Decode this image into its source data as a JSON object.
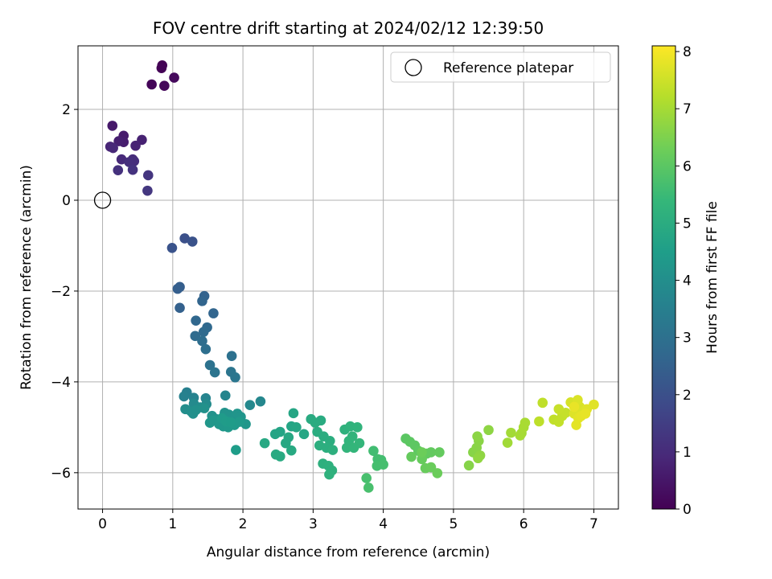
{
  "chart_data": {
    "type": "scatter",
    "title": "FOV centre drift starting at 2024/02/12 12:39:50",
    "xlabel": "Angular distance from reference (arcmin)",
    "ylabel": "Rotation from reference (arcmin)",
    "colorbar_label": "Hours from first FF file",
    "xlim": [
      -0.35,
      7.35
    ],
    "ylim": [
      -6.8,
      3.4
    ],
    "clim": [
      0,
      8.1
    ],
    "colormap": "viridis",
    "grid": true,
    "xticks": [
      0,
      1,
      2,
      3,
      4,
      5,
      6,
      7
    ],
    "xtick_labels": [
      "0",
      "1",
      "2",
      "3",
      "4",
      "5",
      "6",
      "7"
    ],
    "yticks": [
      -6,
      -4,
      -2,
      0,
      2
    ],
    "ytick_labels": [
      "−6",
      "−4",
      "−2",
      "0",
      "2"
    ],
    "cticks": [
      0,
      1,
      2,
      3,
      4,
      5,
      6,
      7,
      8
    ],
    "ctick_labels": [
      "0",
      "1",
      "2",
      "3",
      "4",
      "5",
      "6",
      "7",
      "8"
    ],
    "legend": {
      "label": "Reference platepar",
      "loc": "upper right"
    },
    "reference_point": {
      "x": 0,
      "y": 0
    },
    "points": [
      [
        0.85,
        2.97,
        0.0
      ],
      [
        0.84,
        2.91,
        0.05
      ],
      [
        0.7,
        2.55,
        0.1
      ],
      [
        0.88,
        2.52,
        0.15
      ],
      [
        1.02,
        2.7,
        0.2
      ],
      [
        0.14,
        1.64,
        0.55
      ],
      [
        0.3,
        1.42,
        0.6
      ],
      [
        0.3,
        1.28,
        0.65
      ],
      [
        0.23,
        1.3,
        0.7
      ],
      [
        0.56,
        1.33,
        0.75
      ],
      [
        0.47,
        1.2,
        0.8
      ],
      [
        0.11,
        1.18,
        0.85
      ],
      [
        0.15,
        1.15,
        0.9
      ],
      [
        0.27,
        0.9,
        0.95
      ],
      [
        0.43,
        0.9,
        1.0
      ],
      [
        0.45,
        0.86,
        1.05
      ],
      [
        0.38,
        0.84,
        1.1
      ],
      [
        0.22,
        0.66,
        1.15
      ],
      [
        0.43,
        0.67,
        1.2
      ],
      [
        0.65,
        0.55,
        1.25
      ],
      [
        0.64,
        0.21,
        1.3
      ],
      [
        1.17,
        -0.84,
        2.0
      ],
      [
        1.28,
        -0.91,
        2.05
      ],
      [
        0.99,
        -1.05,
        2.1
      ],
      [
        1.1,
        -1.91,
        2.4
      ],
      [
        1.07,
        -1.95,
        2.45
      ],
      [
        1.1,
        -2.37,
        2.5
      ],
      [
        1.45,
        -2.11,
        2.55
      ],
      [
        1.42,
        -2.22,
        2.6
      ],
      [
        1.58,
        -2.49,
        2.65
      ],
      [
        1.33,
        -2.65,
        2.7
      ],
      [
        1.49,
        -2.8,
        2.75
      ],
      [
        1.44,
        -2.9,
        2.8
      ],
      [
        1.32,
        -2.99,
        2.85
      ],
      [
        1.42,
        -3.1,
        2.9
      ],
      [
        1.47,
        -3.28,
        2.95
      ],
      [
        1.84,
        -3.43,
        3.0
      ],
      [
        1.53,
        -3.63,
        3.05
      ],
      [
        1.6,
        -3.79,
        3.1
      ],
      [
        1.83,
        -3.78,
        3.15
      ],
      [
        1.89,
        -3.9,
        3.2
      ],
      [
        1.2,
        -4.23,
        3.5
      ],
      [
        1.16,
        -4.32,
        3.55
      ],
      [
        1.3,
        -4.35,
        3.6
      ],
      [
        1.47,
        -4.36,
        3.65
      ],
      [
        1.75,
        -4.3,
        3.7
      ],
      [
        2.25,
        -4.43,
        3.75
      ],
      [
        2.1,
        -4.51,
        3.8
      ],
      [
        1.3,
        -4.48,
        3.85
      ],
      [
        1.48,
        -4.49,
        3.9
      ],
      [
        1.39,
        -4.56,
        3.95
      ],
      [
        1.18,
        -4.6,
        4.0
      ],
      [
        1.26,
        -4.65,
        4.02
      ],
      [
        1.29,
        -4.7,
        4.04
      ],
      [
        1.33,
        -4.62,
        4.06
      ],
      [
        1.45,
        -4.58,
        4.08
      ],
      [
        1.56,
        -4.75,
        4.1
      ],
      [
        1.62,
        -4.82,
        4.12
      ],
      [
        1.74,
        -4.68,
        4.14
      ],
      [
        1.8,
        -4.72,
        4.16
      ],
      [
        1.86,
        -4.8,
        4.18
      ],
      [
        1.92,
        -4.7,
        4.2
      ],
      [
        1.97,
        -4.77,
        4.22
      ],
      [
        2.04,
        -4.93,
        4.24
      ],
      [
        1.53,
        -4.9,
        4.26
      ],
      [
        1.58,
        -4.85,
        4.28
      ],
      [
        1.66,
        -4.93,
        4.3
      ],
      [
        1.72,
        -4.98,
        4.32
      ],
      [
        1.79,
        -5.0,
        4.34
      ],
      [
        1.88,
        -4.95,
        4.36
      ],
      [
        1.95,
        -4.88,
        4.38
      ],
      [
        1.7,
        -4.8,
        4.4
      ],
      [
        1.76,
        -4.87,
        4.42
      ],
      [
        1.83,
        -4.89,
        4.44
      ],
      [
        1.9,
        -5.5,
        4.46
      ],
      [
        2.46,
        -5.15,
        4.7
      ],
      [
        2.53,
        -5.1,
        4.72
      ],
      [
        2.69,
        -4.98,
        4.74
      ],
      [
        2.72,
        -4.69,
        4.76
      ],
      [
        2.76,
        -5.0,
        4.78
      ],
      [
        2.87,
        -5.15,
        4.8
      ],
      [
        2.65,
        -5.22,
        4.82
      ],
      [
        2.61,
        -5.35,
        4.84
      ],
      [
        2.31,
        -5.35,
        4.86
      ],
      [
        2.69,
        -5.51,
        4.88
      ],
      [
        2.47,
        -5.6,
        4.9
      ],
      [
        2.53,
        -5.64,
        4.92
      ],
      [
        2.97,
        -4.82,
        4.94
      ],
      [
        3.11,
        -4.85,
        4.96
      ],
      [
        3.03,
        -4.9,
        4.98
      ],
      [
        3.06,
        -5.1,
        5.0
      ],
      [
        3.15,
        -5.2,
        5.02
      ],
      [
        3.24,
        -5.3,
        5.04
      ],
      [
        3.09,
        -5.4,
        5.06
      ],
      [
        3.19,
        -5.45,
        5.08
      ],
      [
        3.28,
        -5.5,
        5.1
      ],
      [
        3.14,
        -5.8,
        5.12
      ],
      [
        3.22,
        -5.85,
        5.14
      ],
      [
        3.27,
        -5.95,
        5.16
      ],
      [
        3.23,
        -6.04,
        5.18
      ],
      [
        3.45,
        -5.05,
        5.2
      ],
      [
        3.53,
        -4.98,
        5.22
      ],
      [
        3.63,
        -5.0,
        5.24
      ],
      [
        3.56,
        -5.2,
        5.26
      ],
      [
        3.51,
        -5.3,
        5.28
      ],
      [
        3.48,
        -5.45,
        5.3
      ],
      [
        3.58,
        -5.45,
        5.32
      ],
      [
        3.66,
        -5.35,
        5.34
      ],
      [
        3.86,
        -5.52,
        5.6
      ],
      [
        3.92,
        -5.7,
        5.62
      ],
      [
        3.97,
        -5.72,
        5.64
      ],
      [
        3.91,
        -5.85,
        5.66
      ],
      [
        4.0,
        -5.82,
        5.68
      ],
      [
        3.76,
        -6.12,
        5.7
      ],
      [
        3.79,
        -6.33,
        5.72
      ],
      [
        4.32,
        -5.25,
        6.0
      ],
      [
        4.38,
        -5.32,
        6.02
      ],
      [
        4.45,
        -5.4,
        6.04
      ],
      [
        4.5,
        -5.52,
        6.06
      ],
      [
        4.57,
        -5.6,
        6.08
      ],
      [
        4.62,
        -5.58,
        6.1
      ],
      [
        4.68,
        -5.55,
        6.12
      ],
      [
        4.8,
        -5.55,
        6.14
      ],
      [
        4.4,
        -5.65,
        6.16
      ],
      [
        4.55,
        -5.7,
        6.18
      ],
      [
        4.6,
        -5.9,
        6.2
      ],
      [
        4.68,
        -5.88,
        6.22
      ],
      [
        4.77,
        -6.01,
        6.24
      ],
      [
        4.55,
        -5.55,
        6.26
      ],
      [
        5.22,
        -5.84,
        6.6
      ],
      [
        5.28,
        -5.55,
        6.62
      ],
      [
        5.33,
        -5.45,
        6.64
      ],
      [
        5.36,
        -5.3,
        6.66
      ],
      [
        5.34,
        -5.2,
        6.68
      ],
      [
        5.5,
        -5.06,
        6.7
      ],
      [
        5.38,
        -5.62,
        6.72
      ],
      [
        5.35,
        -5.68,
        6.74
      ],
      [
        5.77,
        -5.34,
        6.95
      ],
      [
        5.82,
        -5.12,
        6.97
      ],
      [
        5.97,
        -5.13,
        6.99
      ],
      [
        5.95,
        -5.18,
        7.01
      ],
      [
        6.0,
        -5.0,
        7.03
      ],
      [
        6.02,
        -4.9,
        7.05
      ],
      [
        6.22,
        -4.87,
        7.3
      ],
      [
        6.27,
        -4.46,
        7.32
      ],
      [
        6.43,
        -4.83,
        7.34
      ],
      [
        6.5,
        -4.88,
        7.36
      ],
      [
        6.55,
        -4.75,
        7.38
      ],
      [
        6.6,
        -4.68,
        7.4
      ],
      [
        6.5,
        -4.6,
        7.42
      ],
      [
        6.67,
        -4.45,
        7.6
      ],
      [
        6.75,
        -4.5,
        7.62
      ],
      [
        6.8,
        -4.55,
        7.64
      ],
      [
        6.77,
        -4.4,
        7.66
      ],
      [
        6.85,
        -4.65,
        7.68
      ],
      [
        6.72,
        -4.7,
        7.7
      ],
      [
        6.9,
        -4.6,
        7.72
      ],
      [
        7.0,
        -4.5,
        7.74
      ],
      [
        6.78,
        -4.8,
        7.76
      ],
      [
        6.75,
        -4.95,
        7.78
      ],
      [
        6.82,
        -4.75,
        7.8
      ],
      [
        6.88,
        -4.7,
        7.82
      ],
      [
        6.72,
        -4.55,
        7.84
      ]
    ]
  }
}
